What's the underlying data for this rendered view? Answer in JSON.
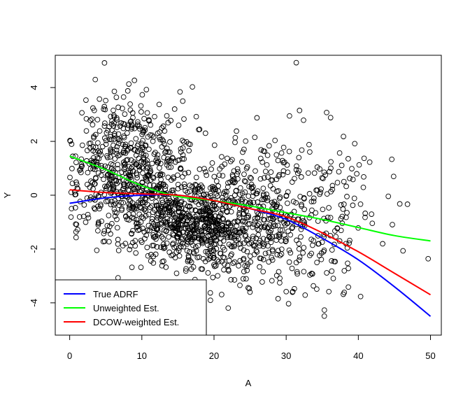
{
  "chart_data": {
    "type": "scatter",
    "xlabel": "A",
    "ylabel": "Y",
    "xlim": [
      -2,
      51.5
    ],
    "ylim": [
      -5.2,
      5.2
    ],
    "x_ticks": [
      0,
      10,
      20,
      30,
      40,
      50
    ],
    "y_ticks": [
      -4,
      -2,
      0,
      2,
      4
    ],
    "legend_position": "bottom-left",
    "scatter": {
      "n_points": 1800,
      "marker": "open-circle",
      "color": "#000000",
      "description_clusters": [
        {
          "x_center": 8,
          "x_spread": 5,
          "y_center": 1.0,
          "y_spread": 1.3,
          "weight": 0.35
        },
        {
          "x_center": 17,
          "x_spread": 5,
          "y_center": -1.0,
          "y_spread": 0.8,
          "weight": 0.35
        },
        {
          "x_center": 28,
          "x_spread": 7,
          "y_center": -0.8,
          "y_spread": 1.5,
          "weight": 0.3
        }
      ]
    },
    "series": [
      {
        "name": "True ADRF",
        "color": "#0000ff",
        "x": [
          0,
          5,
          10,
          15,
          20,
          25,
          30,
          35,
          40,
          45,
          50
        ],
        "y": [
          -0.3,
          -0.1,
          0.0,
          0.0,
          -0.2,
          -0.5,
          -0.9,
          -1.6,
          -2.4,
          -3.4,
          -4.5
        ]
      },
      {
        "name": "Unweighted Est.",
        "color": "#00ff00",
        "x": [
          0,
          5,
          10,
          15,
          20,
          25,
          30,
          35,
          40,
          45,
          50
        ],
        "y": [
          1.45,
          0.95,
          0.35,
          -0.05,
          -0.2,
          -0.4,
          -0.65,
          -0.9,
          -1.2,
          -1.5,
          -1.7
        ]
      },
      {
        "name": "DCOW-weighted Est.",
        "color": "#ff0000",
        "x": [
          0,
          5,
          10,
          15,
          20,
          25,
          30,
          35,
          40,
          45,
          50
        ],
        "y": [
          0.2,
          0.1,
          0.05,
          0.0,
          -0.2,
          -0.5,
          -0.8,
          -1.4,
          -2.1,
          -2.9,
          -3.7
        ]
      }
    ]
  }
}
